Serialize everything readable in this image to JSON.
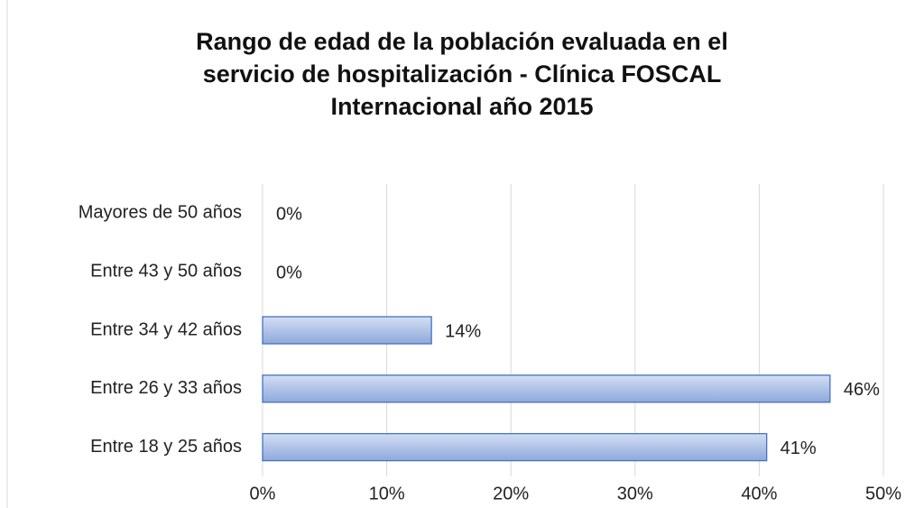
{
  "chart_data": {
    "type": "bar",
    "orientation": "horizontal",
    "title": [
      "Rango de edad de la población evaluada en el",
      "servicio de hospitalización - Clínica FOSCAL",
      "Internacional año 2015"
    ],
    "categories": [
      "Entre 18 y 25 años",
      "Entre 26 y 33 años",
      "Entre 34 y 42 años",
      "Entre 43 y 50 años",
      "Mayores de 50 años"
    ],
    "values": [
      40.6,
      45.7,
      13.6,
      0,
      0
    ],
    "value_labels": [
      "41%",
      "46%",
      "14%",
      "0%",
      "0%"
    ],
    "color": "#aebfe3",
    "xlim": [
      0,
      50
    ],
    "xticks": [
      {
        "value": 0,
        "label": "0%"
      },
      {
        "value": 10,
        "label": "10%"
      },
      {
        "value": 20,
        "label": "20%"
      },
      {
        "value": 30,
        "label": "30%"
      },
      {
        "value": 40,
        "label": "40%"
      },
      {
        "value": 50,
        "label": "50%"
      }
    ],
    "grid": true
  }
}
